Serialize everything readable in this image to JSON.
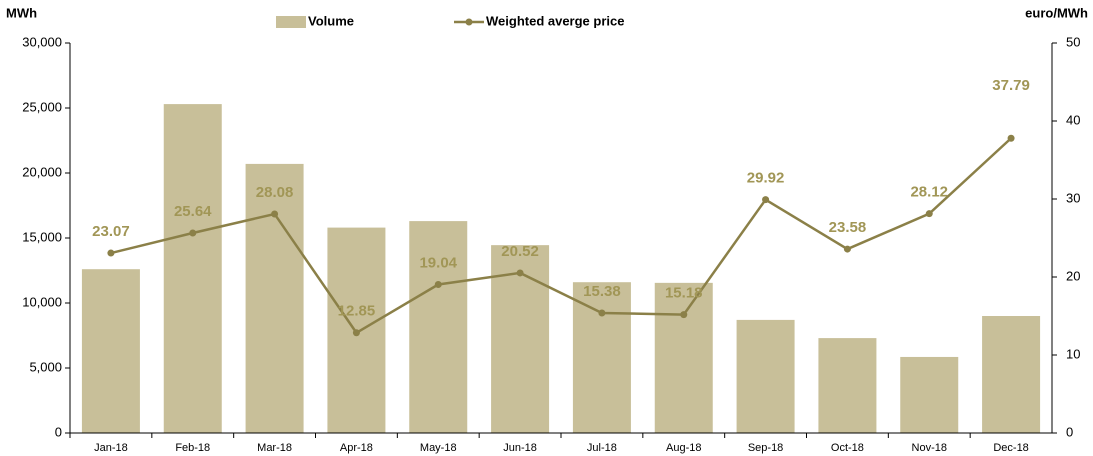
{
  "chart_data": {
    "type": "bar",
    "y_label": "MWh",
    "y2_label": "euro/MWh",
    "categories": [
      "Jan-18",
      "Feb-18",
      "Mar-18",
      "Apr-18",
      "May-18",
      "Jun-18",
      "Jul-18",
      "Aug-18",
      "Sep-18",
      "Oct-18",
      "Nov-18",
      "Dec-18"
    ],
    "series": [
      {
        "name": "Volume",
        "type": "bar",
        "color": "#c8bf99",
        "values": [
          12600,
          25300,
          20700,
          15800,
          16300,
          14450,
          11600,
          11550,
          8700,
          7300,
          5850,
          9000
        ]
      },
      {
        "name": "Weighted averge price",
        "type": "line",
        "axis": "y2",
        "color": "#8b8048",
        "label_color": "#a19656",
        "values": [
          23.07,
          25.64,
          28.08,
          12.85,
          19.04,
          20.52,
          15.38,
          15.18,
          29.92,
          23.58,
          28.12,
          37.79
        ]
      }
    ],
    "ylim": [
      0,
      30000
    ],
    "yticks": [
      0,
      {
        "value": 5000,
        "label": "5,000"
      },
      {
        "value": 10000,
        "label": "10,000"
      },
      {
        "value": 15000,
        "label": "15,000"
      },
      {
        "value": 20000,
        "label": "20,000"
      },
      {
        "value": 25000,
        "label": "25,000"
      },
      {
        "value": 30000,
        "label": "30,000"
      }
    ],
    "y2lim": [
      0,
      50
    ],
    "y2ticks": [
      0,
      10,
      20,
      30,
      40,
      50
    ],
    "grid": false,
    "legend": "top"
  }
}
